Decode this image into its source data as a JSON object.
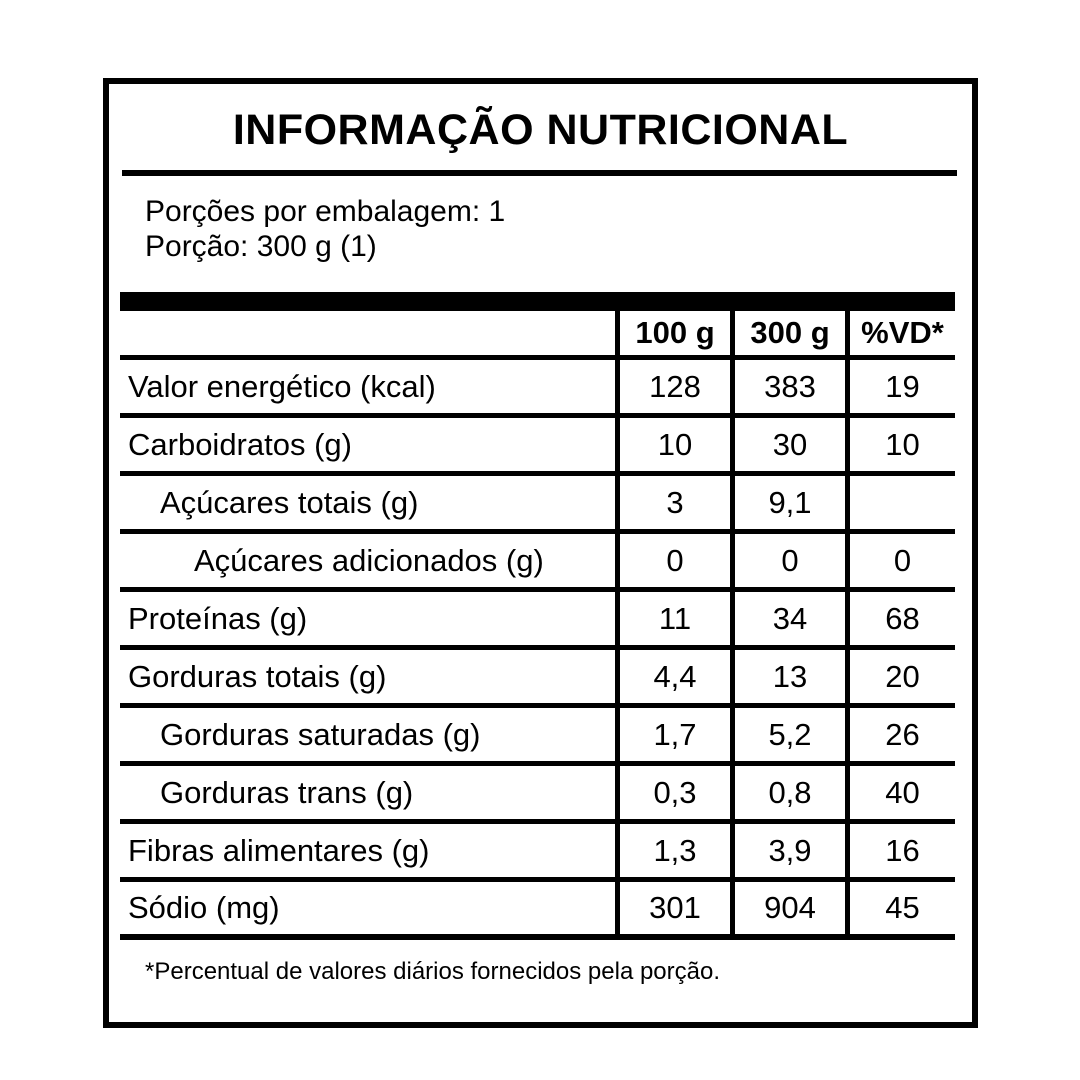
{
  "title": "INFORMAÇÃO NUTRICIONAL",
  "serving_info": {
    "line1": "Porções por embalagem: 1",
    "line2": "Porção: 300 g (1)"
  },
  "table": {
    "columns": [
      "",
      "100 g",
      "300 g",
      "%VD*"
    ],
    "rows": [
      {
        "label": "Valor energético (kcal)",
        "indent": 0,
        "per100": "128",
        "per300": "383",
        "vd": "19"
      },
      {
        "label": "Carboidratos (g)",
        "indent": 0,
        "per100": "10",
        "per300": "30",
        "vd": "10"
      },
      {
        "label": "Açúcares totais (g)",
        "indent": 1,
        "per100": "3",
        "per300": "9,1",
        "vd": ""
      },
      {
        "label": "Açúcares adicionados (g)",
        "indent": 2,
        "per100": "0",
        "per300": "0",
        "vd": "0"
      },
      {
        "label": "Proteínas (g)",
        "indent": 0,
        "per100": "11",
        "per300": "34",
        "vd": "68"
      },
      {
        "label": "Gorduras totais (g)",
        "indent": 0,
        "per100": "4,4",
        "per300": "13",
        "vd": "20"
      },
      {
        "label": "Gorduras saturadas (g)",
        "indent": 1,
        "per100": "1,7",
        "per300": "5,2",
        "vd": "26"
      },
      {
        "label": "Gorduras trans (g)",
        "indent": 1,
        "per100": "0,3",
        "per300": "0,8",
        "vd": "40"
      },
      {
        "label": "Fibras alimentares (g)",
        "indent": 0,
        "per100": "1,3",
        "per300": "3,9",
        "vd": "16"
      },
      {
        "label": "Sódio (mg)",
        "indent": 0,
        "per100": "301",
        "per300": "904",
        "vd": "45"
      }
    ]
  },
  "footnote": "*Percentual de valores diários fornecidos pela porção.",
  "colors": {
    "ink": "#000000",
    "background": "#ffffff"
  }
}
